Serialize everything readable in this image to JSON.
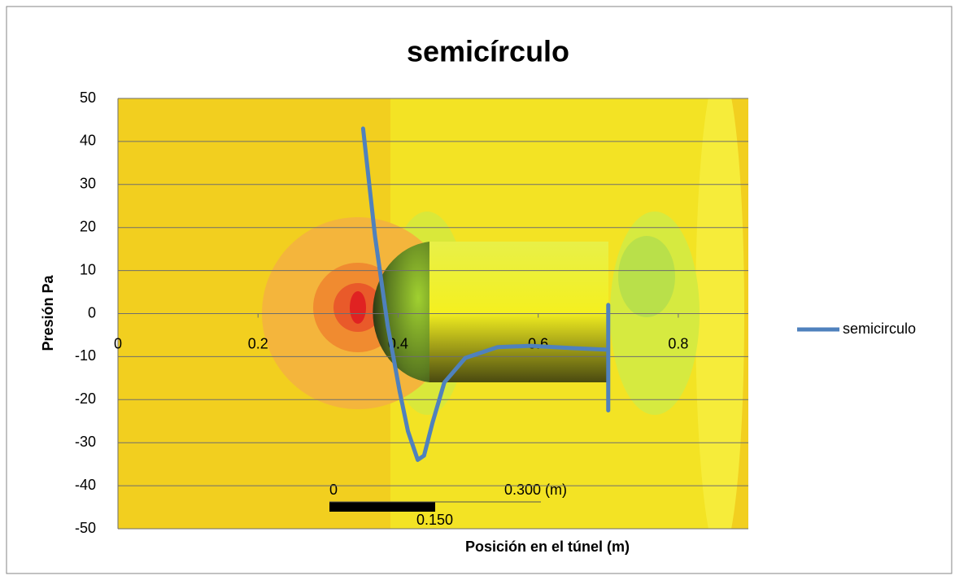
{
  "chart_data": {
    "type": "line",
    "title": "semicírculo",
    "x_label": "Posición en el túnel (m)",
    "y_label": "Presión Pa",
    "xlim": [
      0,
      0.9
    ],
    "ylim": [
      -50,
      50
    ],
    "xticks": [
      0,
      0.2,
      0.4,
      0.6,
      0.8
    ],
    "yticks": [
      -50,
      -40,
      -30,
      -20,
      -10,
      0,
      10,
      20,
      30,
      40,
      50
    ],
    "grid": true,
    "legend": "right",
    "annotations": [
      "0",
      "0.300  (m)",
      "0.150"
    ],
    "series": [
      {
        "name": "semicirculo",
        "color": "#4f81bd",
        "x": [
          0.35,
          0.367,
          0.385,
          0.402,
          0.414,
          0.428,
          0.437,
          0.449,
          0.466,
          0.496,
          0.542,
          0.589,
          0.647,
          0.7,
          0.7,
          0.7
        ],
        "values": [
          43,
          18,
          -2.7,
          -17.9,
          -27.3,
          -34,
          -33,
          -25.4,
          -16,
          -10.3,
          -7.8,
          -7.5,
          -8,
          -8.4,
          2,
          -22.5
        ]
      }
    ]
  }
}
